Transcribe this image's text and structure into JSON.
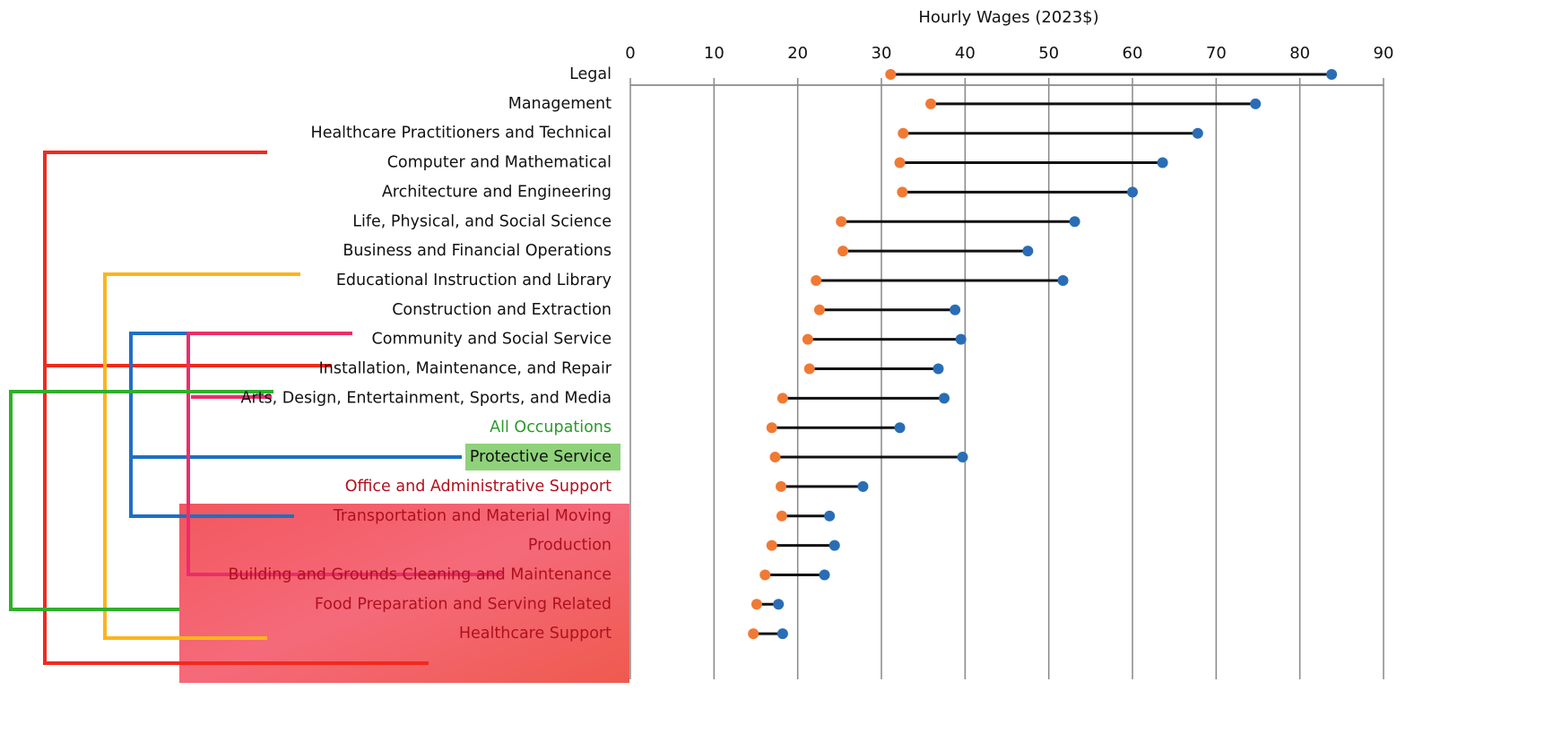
{
  "chart_data": {
    "type": "dumbbell",
    "title": "Hourly Wages (2023$)",
    "categories": [
      "Legal",
      "Management",
      "Healthcare Practitioners and Technical",
      "Computer and Mathematical",
      "Architecture and Engineering",
      "Life, Physical, and Social Science",
      "Business and Financial Operations",
      "Educational Instruction and Library",
      "Construction and Extraction",
      "Community and Social Service",
      "Installation, Maintenance, and Repair",
      "Arts, Design, Entertainment, Sports, and Media",
      "All Occupations",
      "Protective Service",
      "Office and Administrative Support",
      "Transportation and Material Moving",
      "Production",
      "Building and Grounds Cleaning and Maintenance",
      "Food Preparation and Serving Related",
      "Healthcare Support"
    ],
    "series": [
      {
        "color": "#f07a34",
        "values": [
          31.1,
          35.9,
          32.6,
          32.2,
          32.5,
          25.2,
          25.4,
          22.2,
          22.6,
          21.2,
          21.4,
          18.2,
          16.9,
          17.3,
          18.0,
          18.1,
          16.9,
          16.1,
          15.1,
          14.7
        ]
      },
      {
        "color": "#2a6db5",
        "values": [
          83.8,
          74.7,
          67.8,
          63.6,
          60.0,
          53.1,
          47.5,
          51.7,
          38.8,
          39.5,
          36.8,
          37.5,
          32.2,
          39.7,
          27.8,
          23.8,
          24.4,
          23.2,
          17.7,
          18.2
        ]
      }
    ],
    "xlim": [
      0,
      90
    ],
    "xticks": [
      0,
      10,
      20,
      30,
      40,
      50,
      60,
      70,
      80,
      90
    ],
    "grid": true
  }
}
